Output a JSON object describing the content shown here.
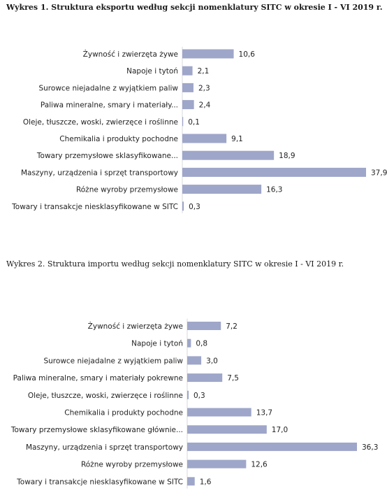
{
  "chart_data": [
    {
      "type": "bar",
      "orientation": "horizontal",
      "title": "Wykres 1. Struktura eksportu według sekcji nomenklatury SITC w okresie I - VI 2019 r.",
      "categories": [
        "Żywność i zwierzęta żywe",
        "Napoje i tytoń",
        "Surowce niejadalne z wyjątkiem paliw",
        "Paliwa mineralne, smary i materiały...",
        "Oleje, tłuszcze, woski, zwierzęce i roślinne",
        "Chemikalia i produkty pochodne",
        "Towary przemysłowe sklasyfikowane...",
        "Maszyny, urządzenia i sprzęt transportowy",
        "Różne wyroby przemysłowe",
        "Towary i transakcje niesklasyfikowane w SITC"
      ],
      "values": [
        10.6,
        2.1,
        2.3,
        2.4,
        0.1,
        9.1,
        18.9,
        37.9,
        16.3,
        0.3
      ],
      "value_labels": [
        "10,6",
        "2,1",
        "2,3",
        "2,4",
        "0,1",
        "9,1",
        "18,9",
        "37,9",
        "16,3",
        "0,3"
      ],
      "bar_color": "#9ea6c9",
      "grid": false
    },
    {
      "type": "bar",
      "orientation": "horizontal",
      "title": "Wykres 2. Struktura importu według sekcji nomenklatury SITC w okresie I - VI 2019 r.",
      "categories": [
        "Żywność i zwierzęta żywe",
        "Napoje i tytoń",
        "Surowce niejadalne z wyjątkiem paliw",
        "Paliwa mineralne, smary i materiały pokrewne",
        "Oleje, tłuszcze, woski, zwierzęce i roślinne",
        "Chemikalia i produkty pochodne",
        "Towary przemysłowe sklasyfikowane głównie...",
        "Maszyny, urządzenia i sprzęt transportowy",
        "Różne wyroby przemysłowe",
        "Towary i transakcje niesklasyfikowane w SITC"
      ],
      "values": [
        7.2,
        0.8,
        3.0,
        7.5,
        0.3,
        13.7,
        17.0,
        36.3,
        12.6,
        1.6
      ],
      "value_labels": [
        "7,2",
        "0,8",
        "3,0",
        "7,5",
        "0,3",
        "13,7",
        "17,0",
        "36,3",
        "12,6",
        "1,6"
      ],
      "bar_color": "#9ea6c9",
      "grid": false
    }
  ]
}
